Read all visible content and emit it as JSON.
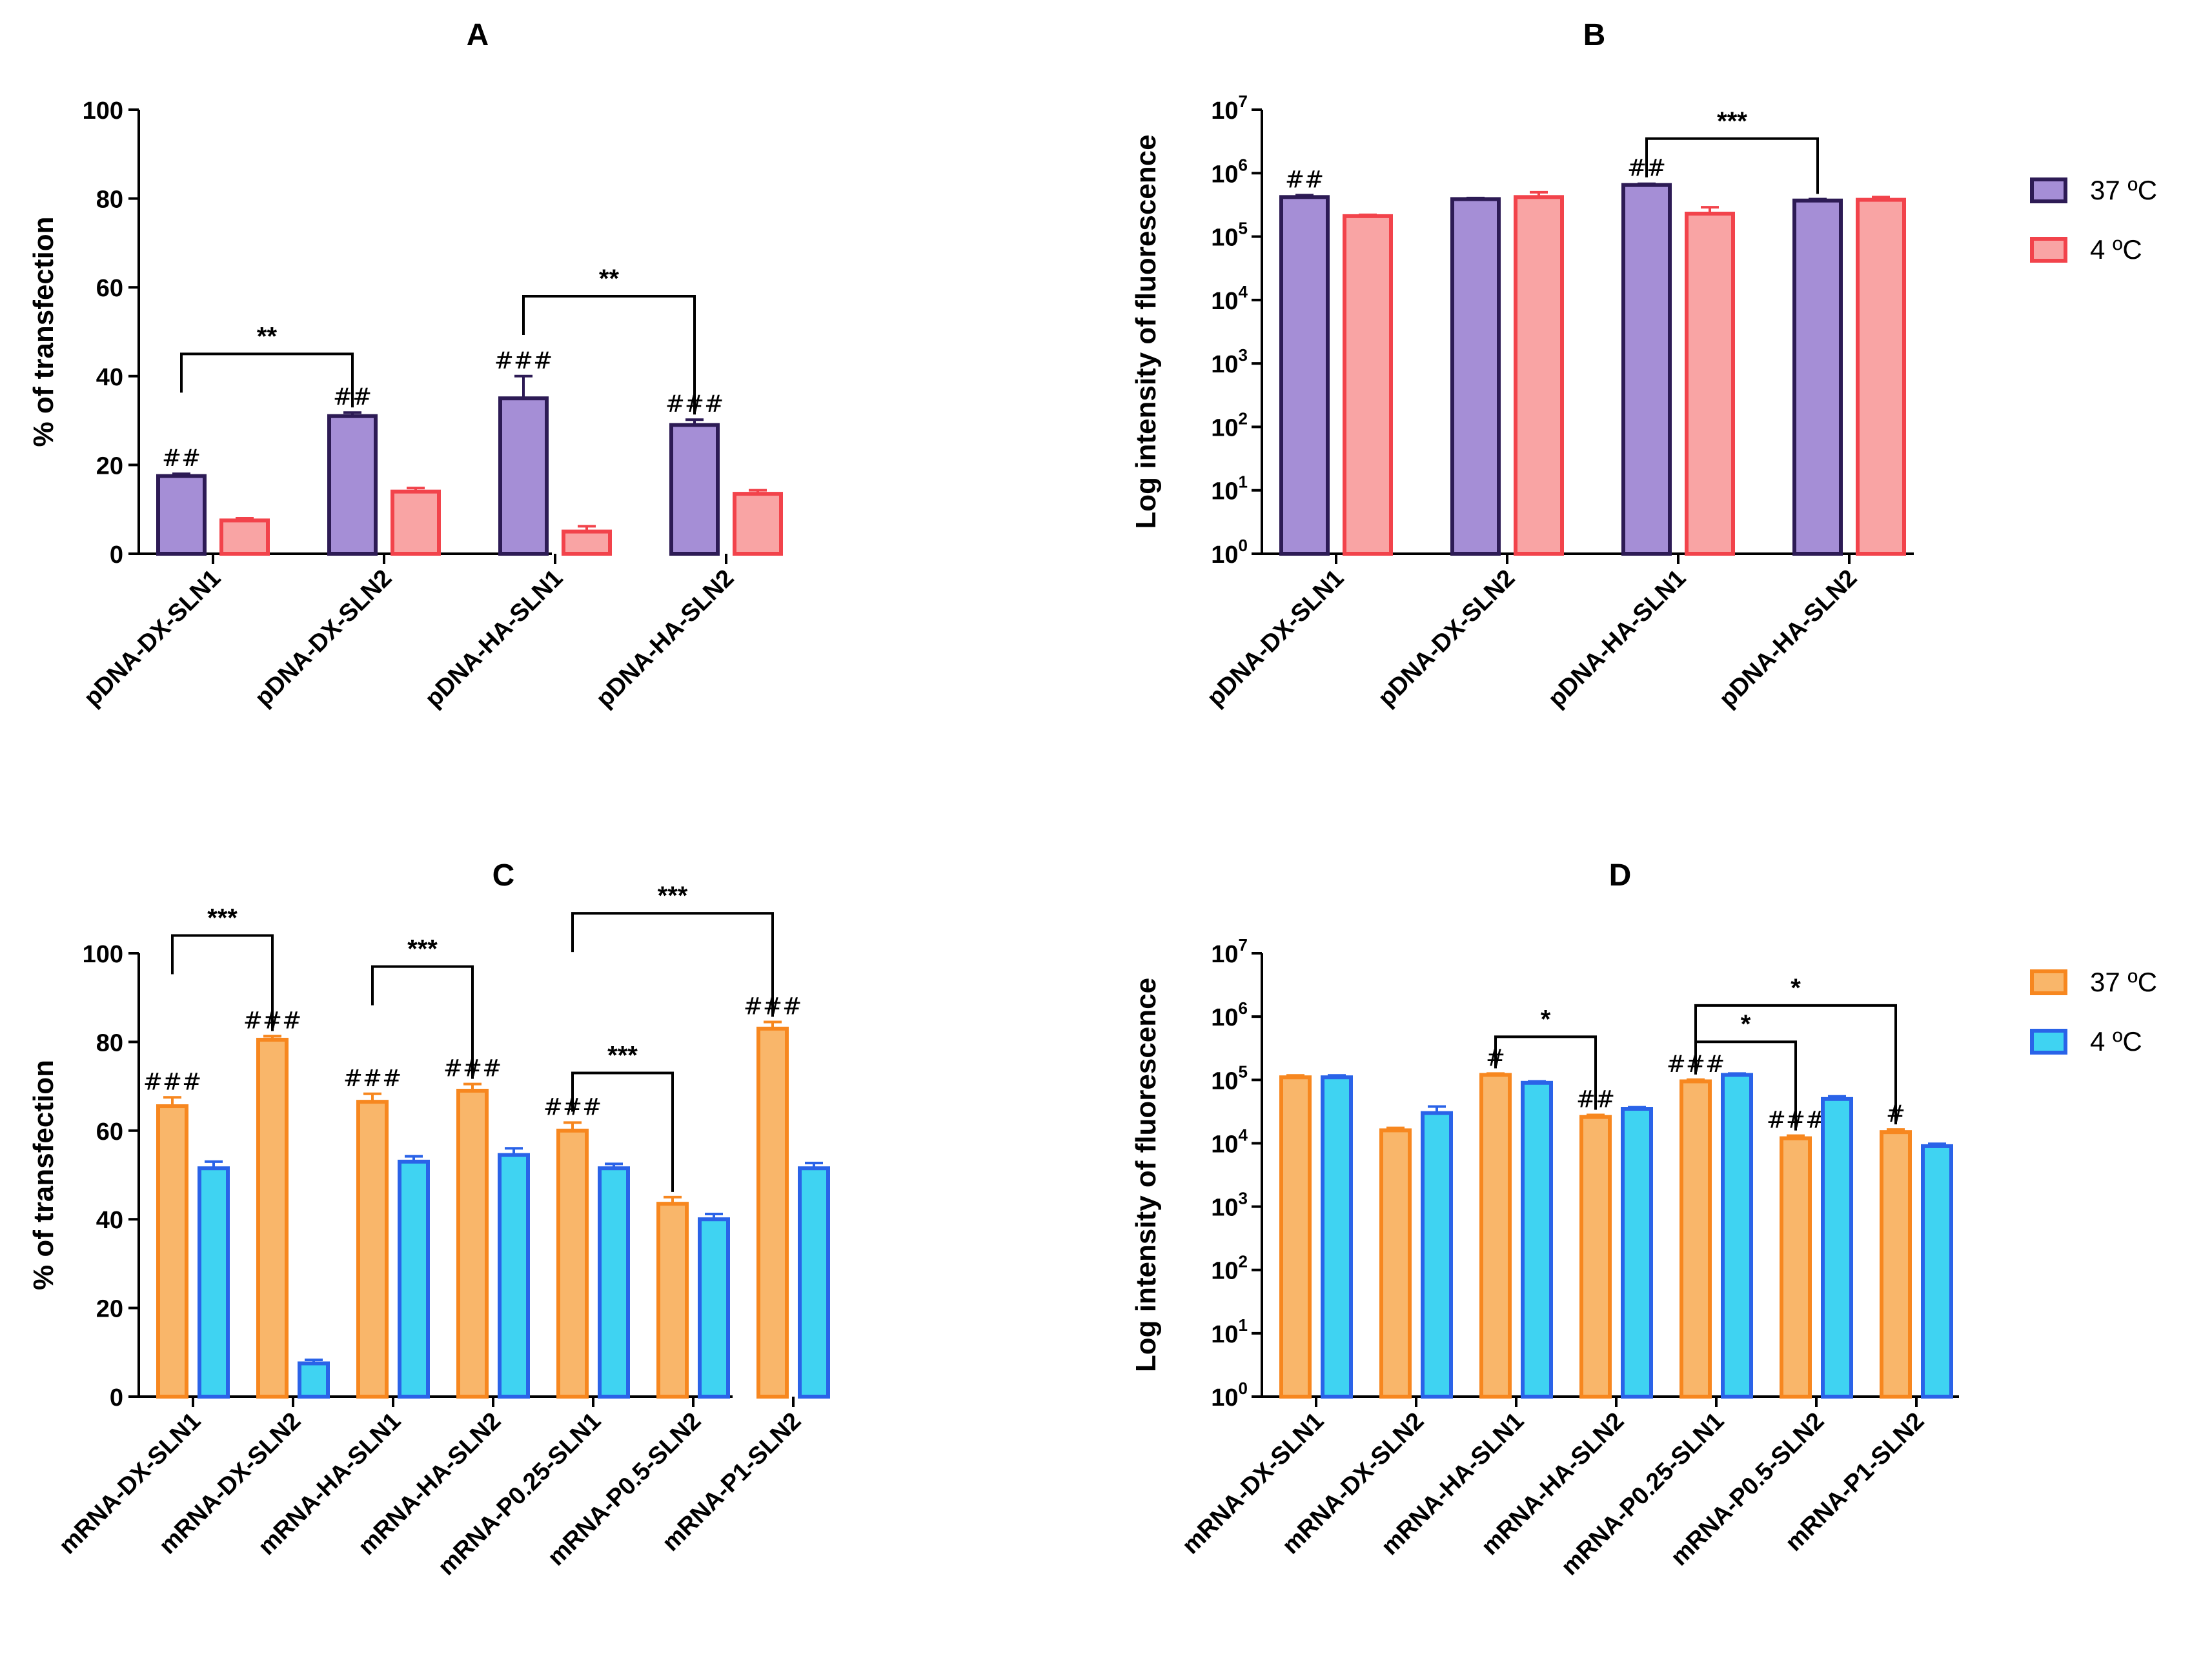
{
  "legend_ab": [
    {
      "label": "37 ºC",
      "fill": "#a58ed6",
      "stroke": "#2d1b55"
    },
    {
      "label": "4 ºC",
      "fill": "#f9a4a4",
      "stroke": "#f2434b"
    }
  ],
  "legend_cd": [
    {
      "label": "37 ºC",
      "fill": "#f9b66a",
      "stroke": "#f7871f"
    },
    {
      "label": "4 ºC",
      "fill": "#3fd3f2",
      "stroke": "#2a63e8"
    }
  ],
  "chart_data": [
    {
      "id": "A",
      "type": "bar",
      "title": "A",
      "xlabel": "",
      "ylabel": "% of transfection",
      "scale": "linear",
      "ylim": [
        0,
        100
      ],
      "yticks": [
        0,
        20,
        40,
        60,
        80,
        100
      ],
      "ytick_labels": [
        "0",
        "20",
        "40",
        "60",
        "80",
        "100"
      ],
      "categories": [
        "pDNA-DX-SLN1",
        "pDNA-DX-SLN2",
        "pDNA-HA-SLN1",
        "pDNA-HA-SLN2"
      ],
      "series": [
        {
          "name": "37 ºC",
          "values": [
            17.5,
            31,
            35,
            29
          ],
          "errors": [
            0.5,
            0.8,
            5,
            1.2
          ],
          "annotations": [
            "##",
            "##",
            "###",
            "###"
          ]
        },
        {
          "name": "4 ºC",
          "values": [
            7.5,
            14,
            5,
            13.5
          ],
          "errors": [
            0.5,
            0.8,
            1.2,
            0.8
          ],
          "annotations": [
            "",
            "",
            "",
            ""
          ]
        }
      ],
      "brackets": [
        {
          "from": [
            0,
            0
          ],
          "to": [
            1,
            0
          ],
          "level": 45,
          "label": "**"
        },
        {
          "from": [
            2,
            0
          ],
          "to": [
            3,
            0
          ],
          "level": 58,
          "label": "**"
        }
      ]
    },
    {
      "id": "B",
      "type": "bar",
      "title": "B",
      "xlabel": "",
      "ylabel": "Log intensity of fluorescence",
      "scale": "log",
      "ylim": [
        1,
        10000000
      ],
      "ytick_exps": [
        "0",
        "1",
        "2",
        "3",
        "4",
        "5",
        "6",
        "7"
      ],
      "ytick_base": "10",
      "categories": [
        "pDNA-DX-SLN1",
        "pDNA-DX-SLN2",
        "pDNA-HA-SLN1",
        "pDNA-HA-SLN2"
      ],
      "series": [
        {
          "name": "37 ºC",
          "values": [
            420000,
            390000,
            650000,
            370000
          ],
          "errors": [
            30000,
            15000,
            30000,
            20000
          ],
          "annotations": [
            "##",
            "",
            "##",
            ""
          ]
        },
        {
          "name": "4 ºC",
          "values": [
            210000,
            420000,
            230000,
            380000
          ],
          "errors": [
            10000,
            80000,
            60000,
            40000
          ],
          "annotations": [
            "",
            "",
            "",
            ""
          ]
        }
      ],
      "brackets": [
        {
          "from": [
            2,
            0
          ],
          "to": [
            3,
            0
          ],
          "level": 3500000,
          "label": "***"
        }
      ]
    },
    {
      "id": "C",
      "type": "bar",
      "title": "C",
      "xlabel": "",
      "ylabel": "% of transfection",
      "scale": "linear",
      "ylim": [
        0,
        100
      ],
      "yticks": [
        0,
        20,
        40,
        60,
        80,
        100
      ],
      "ytick_labels": [
        "0",
        "20",
        "40",
        "60",
        "80",
        "100"
      ],
      "categories": [
        "mRNA-DX-SLN1",
        "mRNA-DX-SLN2",
        "mRNA-HA-SLN1",
        "mRNA-HA-SLN2",
        "mRNA-P0.25-SLN1",
        "mRNA-P0.5-SLN2",
        "mRNA-P1-SLN2"
      ],
      "series": [
        {
          "name": "37 ºC",
          "values": [
            65.5,
            80.5,
            66.5,
            69,
            60,
            43.5,
            83
          ],
          "errors": [
            2,
            0.8,
            1.8,
            1.5,
            1.8,
            1.5,
            1.5
          ],
          "annotations": [
            "###",
            "###",
            "###",
            "###",
            "###",
            "",
            "###"
          ]
        },
        {
          "name": "4 ºC",
          "values": [
            51.5,
            7.5,
            53,
            54.5,
            51.5,
            40,
            51.5
          ],
          "errors": [
            1.5,
            0.8,
            1.2,
            1.5,
            1,
            1.2,
            1.2
          ],
          "annotations": [
            "",
            "",
            "",
            "",
            "",
            "",
            ""
          ]
        }
      ],
      "brackets": [
        {
          "from": [
            0,
            0
          ],
          "to": [
            1,
            0
          ],
          "level": 104,
          "label": "***"
        },
        {
          "from": [
            2,
            0
          ],
          "to": [
            3,
            0
          ],
          "level": 97,
          "label": "***"
        },
        {
          "from": [
            4,
            0
          ],
          "to": [
            6,
            0
          ],
          "level": 109,
          "label": "***"
        },
        {
          "from": [
            4,
            0
          ],
          "to": [
            5,
            0
          ],
          "level": 73,
          "label": "***"
        }
      ]
    },
    {
      "id": "D",
      "type": "bar",
      "title": "D",
      "xlabel": "",
      "ylabel": "Log intensity of fluorescence",
      "scale": "log",
      "ylim": [
        1,
        10000000
      ],
      "ytick_exps": [
        "0",
        "1",
        "2",
        "3",
        "4",
        "5",
        "6",
        "7"
      ],
      "ytick_base": "10",
      "categories": [
        "mRNA-DX-SLN1",
        "mRNA-DX-SLN2",
        "mRNA-HA-SLN1",
        "mRNA-HA-SLN2",
        "mRNA-P0.25-SLN1",
        "mRNA-P0.5-SLN2",
        "mRNA-P1-SLN2"
      ],
      "series": [
        {
          "name": "37 ºC",
          "values": [
            110000,
            16000,
            120000,
            26000,
            95000,
            12000,
            15000
          ],
          "errors": [
            8000,
            1500,
            6000,
            2000,
            6000,
            1200,
            1500
          ],
          "annotations": [
            "",
            "",
            "#",
            "##",
            "###",
            "###",
            "#"
          ]
        },
        {
          "name": "4 ºC",
          "values": [
            110000,
            30000,
            90000,
            35000,
            120000,
            50000,
            9000
          ],
          "errors": [
            8000,
            8000,
            5000,
            2000,
            6000,
            5000,
            800
          ],
          "annotations": [
            "",
            "",
            "",
            "",
            "",
            "",
            ""
          ]
        }
      ],
      "brackets": [
        {
          "from": [
            2,
            0
          ],
          "to": [
            3,
            0
          ],
          "level": 480000,
          "label": "*"
        },
        {
          "from": [
            4,
            0
          ],
          "to": [
            6,
            0
          ],
          "level": 1500000,
          "label": "*"
        },
        {
          "from": [
            4,
            0
          ],
          "to": [
            5,
            0
          ],
          "level": 400000,
          "label": "*"
        }
      ]
    }
  ]
}
